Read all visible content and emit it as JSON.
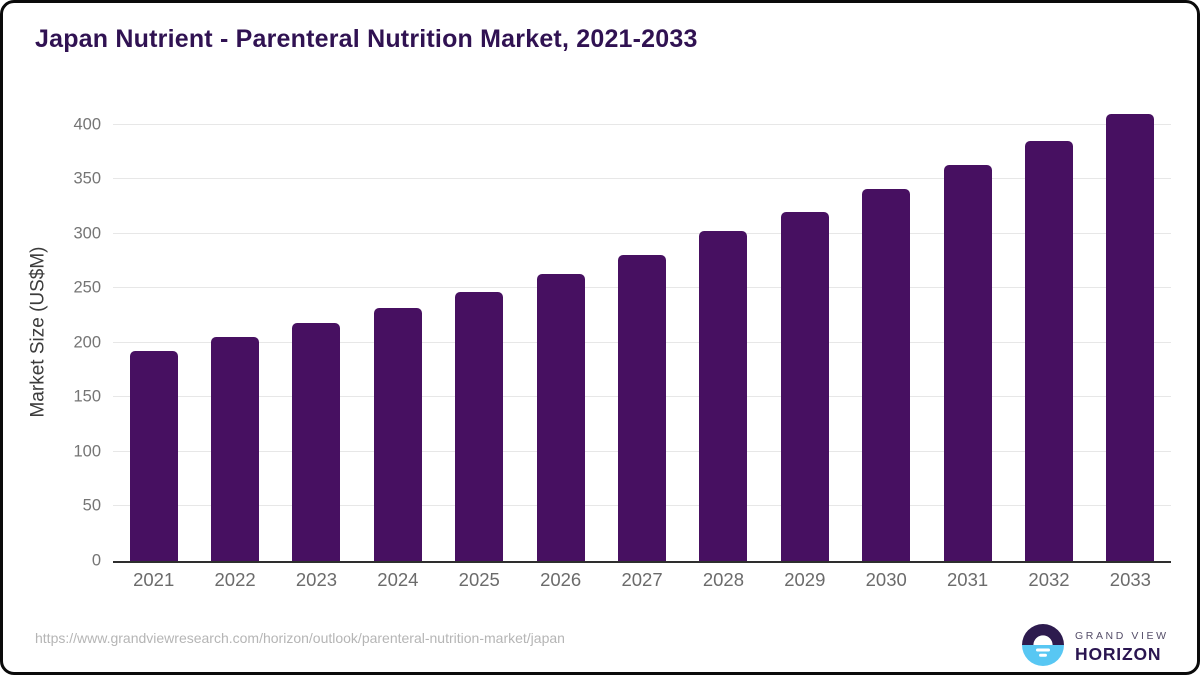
{
  "chart_data": {
    "type": "bar",
    "title": "Japan Nutrient - Parenteral Nutrition Market, 2021-2033",
    "categories": [
      "2021",
      "2022",
      "2023",
      "2024",
      "2025",
      "2026",
      "2027",
      "2028",
      "2029",
      "2030",
      "2031",
      "2032",
      "2033"
    ],
    "values": [
      193,
      205,
      218,
      232,
      247,
      263,
      281,
      303,
      320,
      341,
      363,
      385,
      410
    ],
    "xlabel": "",
    "ylabel": "Market Size (US$M)",
    "ylim": [
      0,
      420
    ],
    "yticks": [
      0,
      50,
      100,
      150,
      200,
      250,
      300,
      350,
      400
    ],
    "grid": "horizontal",
    "legend": "none",
    "bar_color": "#471061"
  },
  "colors": {
    "title": "#301252",
    "bar": "#471061",
    "gridline": "#e7e7e7",
    "axis_line": "#2e2e2e",
    "tick_label": "#757575",
    "url_text": "#b5b5b5",
    "logo_dark_purple": "#2d1b4e",
    "logo_light_blue": "#58c7f3"
  },
  "footer": {
    "source_url": "https://www.grandviewresearch.com/horizon/outlook/parenteral-nutrition-market/japan",
    "logo": {
      "line1": "GRAND VIEW",
      "line2": "HORIZON"
    }
  }
}
